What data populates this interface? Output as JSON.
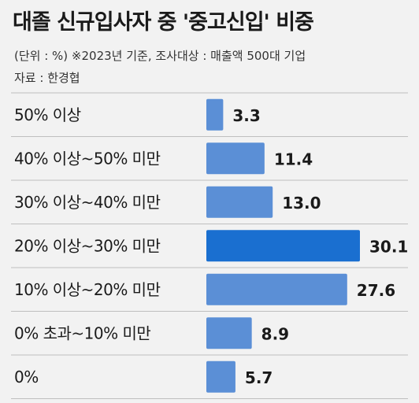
{
  "title": "대졸 신규입사자 중 '중고신입' 비중",
  "note": "(단위 : %)    ※2023년 기준, 조사대상 : 매출액 500대 기업",
  "source": "자료 : 한경협",
  "colors": {
    "bar": "#5b8fd6",
    "highlight": "#1a6fd0",
    "row_line": "#bfbfbf"
  },
  "chart_data": {
    "type": "bar",
    "orientation": "horizontal",
    "title": "대졸 신규입사자 중 '중고신입' 비중",
    "unit": "%",
    "categories": [
      "50% 이상",
      "40% 이상~50% 미만",
      "30% 이상~40% 미만",
      "20% 이상~30% 미만",
      "10% 이상~20% 미만",
      "0% 초과~10% 미만",
      "0%"
    ],
    "values": [
      3.3,
      11.4,
      13.0,
      30.1,
      27.6,
      8.9,
      5.7
    ],
    "value_labels": [
      "3.3",
      "11.4",
      "13.0",
      "30.1",
      "27.6",
      "8.9",
      "5.7"
    ],
    "highlight_category": "20% 이상~30% 미만",
    "xlim": [
      0,
      30.1
    ]
  }
}
